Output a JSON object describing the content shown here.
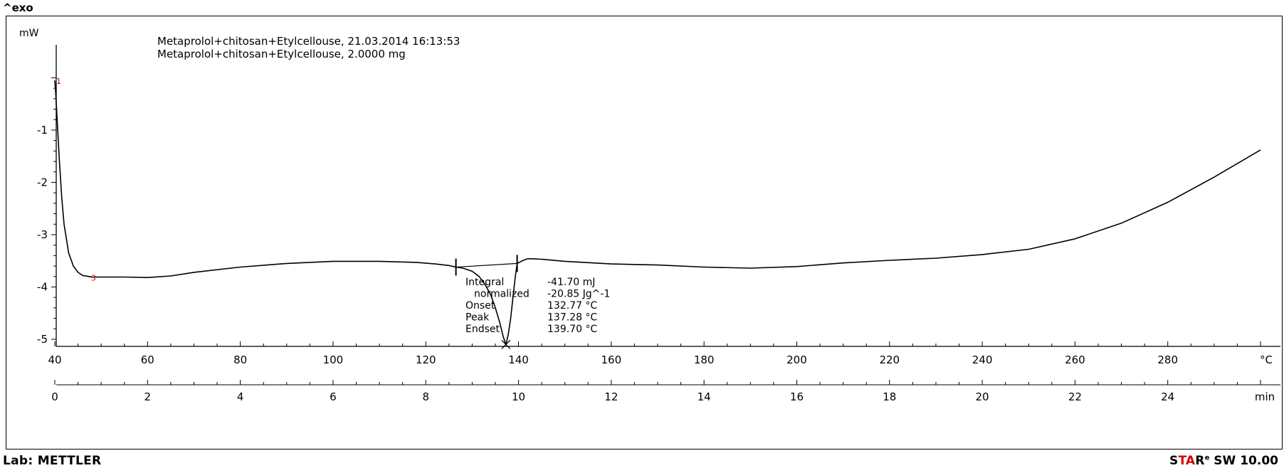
{
  "header": {
    "exo_label": "^exo"
  },
  "footer": {
    "lab_label": "Lab: METTLER",
    "software": {
      "star_prefix": "S",
      "star_red": "TA",
      "star_suffix": "R",
      "registered": "e",
      "version": " SW 10.00"
    }
  },
  "chart_data": {
    "type": "line",
    "title_lines": [
      "Metaprolol+chitosan+Etylcellouse, 21.03.2014 16:13:53",
      "Metaprolol+chitosan+Etylcellouse, 2.0000 mg"
    ],
    "ylabel": "mW",
    "xlabel_temperature": "°C",
    "xlabel_time": "min",
    "y_range": [
      -5.2,
      0.25
    ],
    "y_ticks": [
      -1,
      -2,
      -3,
      -4,
      -5
    ],
    "y_tick_labels": [
      "-1",
      "-2",
      "-3",
      "-4",
      "-5"
    ],
    "temperature_range": [
      40,
      300
    ],
    "temperature_ticks": [
      40,
      60,
      80,
      100,
      120,
      140,
      160,
      180,
      200,
      220,
      240,
      260,
      280
    ],
    "temperature_tick_labels": [
      "40",
      "60",
      "80",
      "100",
      "120",
      "140",
      "160",
      "180",
      "200",
      "220",
      "240",
      "260",
      "280"
    ],
    "time_range": [
      0,
      26
    ],
    "time_ticks": [
      0,
      2,
      4,
      6,
      8,
      10,
      12,
      14,
      16,
      18,
      20,
      22,
      24
    ],
    "time_tick_labels": [
      "0",
      "2",
      "4",
      "6",
      "8",
      "10",
      "12",
      "14",
      "16",
      "18",
      "20",
      "22",
      "24"
    ],
    "grid": false,
    "series": [
      {
        "color": "#000000",
        "x": [
          40,
          40.2,
          40.5,
          41,
          41.5,
          42,
          43,
          44,
          45,
          46,
          48,
          50,
          55,
          60,
          65,
          70,
          80,
          90,
          100,
          110,
          118,
          122,
          125,
          126.5,
          128,
          130,
          131.5,
          132.77,
          134,
          135,
          136,
          136.7,
          137.28,
          137.8,
          138.3,
          138.8,
          139.3,
          139.7,
          141,
          142,
          143,
          145,
          150,
          160,
          170,
          180,
          190,
          200,
          210,
          220,
          230,
          240,
          250,
          260,
          270,
          280,
          290,
          300
        ],
        "y": [
          -0.05,
          -0.3,
          -0.8,
          -1.6,
          -2.3,
          -2.8,
          -3.35,
          -3.6,
          -3.72,
          -3.78,
          -3.81,
          -3.81,
          -3.81,
          -3.82,
          -3.79,
          -3.72,
          -3.62,
          -3.55,
          -3.51,
          -3.51,
          -3.53,
          -3.56,
          -3.59,
          -3.62,
          -3.64,
          -3.7,
          -3.8,
          -3.95,
          -4.15,
          -4.4,
          -4.7,
          -4.95,
          -5.1,
          -4.9,
          -4.6,
          -4.2,
          -3.8,
          -3.55,
          -3.49,
          -3.46,
          -3.46,
          -3.47,
          -3.51,
          -3.56,
          -3.58,
          -3.62,
          -3.64,
          -3.61,
          -3.54,
          -3.49,
          -3.45,
          -3.38,
          -3.28,
          -3.08,
          -2.78,
          -2.38,
          -1.9,
          -1.38
        ]
      }
    ],
    "baseline": {
      "x": [
        126.5,
        139.7
      ],
      "y": [
        -3.62,
        -3.55
      ]
    },
    "limit_markers": [
      {
        "label": "1",
        "x": 40,
        "y": -0.05
      },
      {
        "label": "3",
        "x": 47.5,
        "y": -3.81
      }
    ],
    "peak_marker": {
      "x": 137.28,
      "y": -5.1
    },
    "annotation": [
      {
        "label": "Integral",
        "value": "-41.70 mJ"
      },
      {
        "label": "normalized",
        "value": "-20.85 Jg^-1"
      },
      {
        "label": "Onset",
        "value": "132.77 °C"
      },
      {
        "label": "Peak",
        "value": "137.28 °C"
      },
      {
        "label": "Endset",
        "value": "139.70 °C"
      }
    ]
  }
}
